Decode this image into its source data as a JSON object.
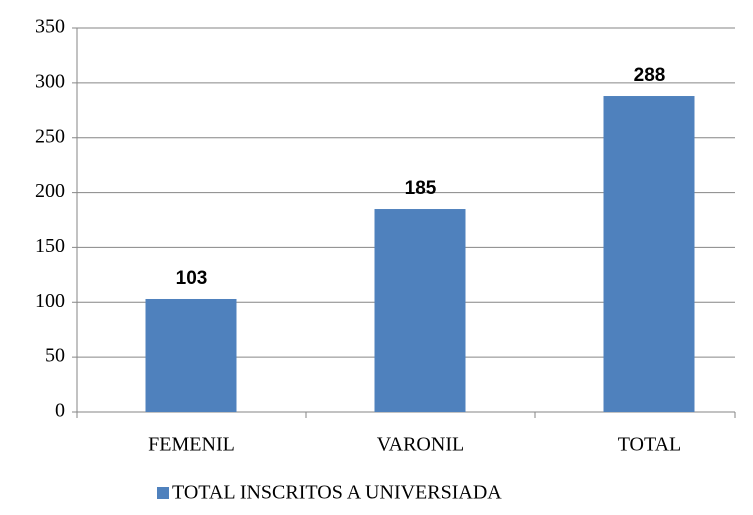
{
  "chart_data": {
    "type": "bar",
    "categories": [
      "FEMENIL",
      "VARONIL",
      "TOTAL"
    ],
    "series": [
      {
        "name": "TOTAL INSCRITOS A UNIVERSIADA",
        "color": "#4f81bd",
        "values": [
          103,
          185,
          288
        ]
      }
    ],
    "ylim": [
      0,
      350
    ],
    "yticks": [
      0,
      50,
      100,
      150,
      200,
      250,
      300,
      350
    ],
    "grid": true,
    "legend": "bottom"
  }
}
